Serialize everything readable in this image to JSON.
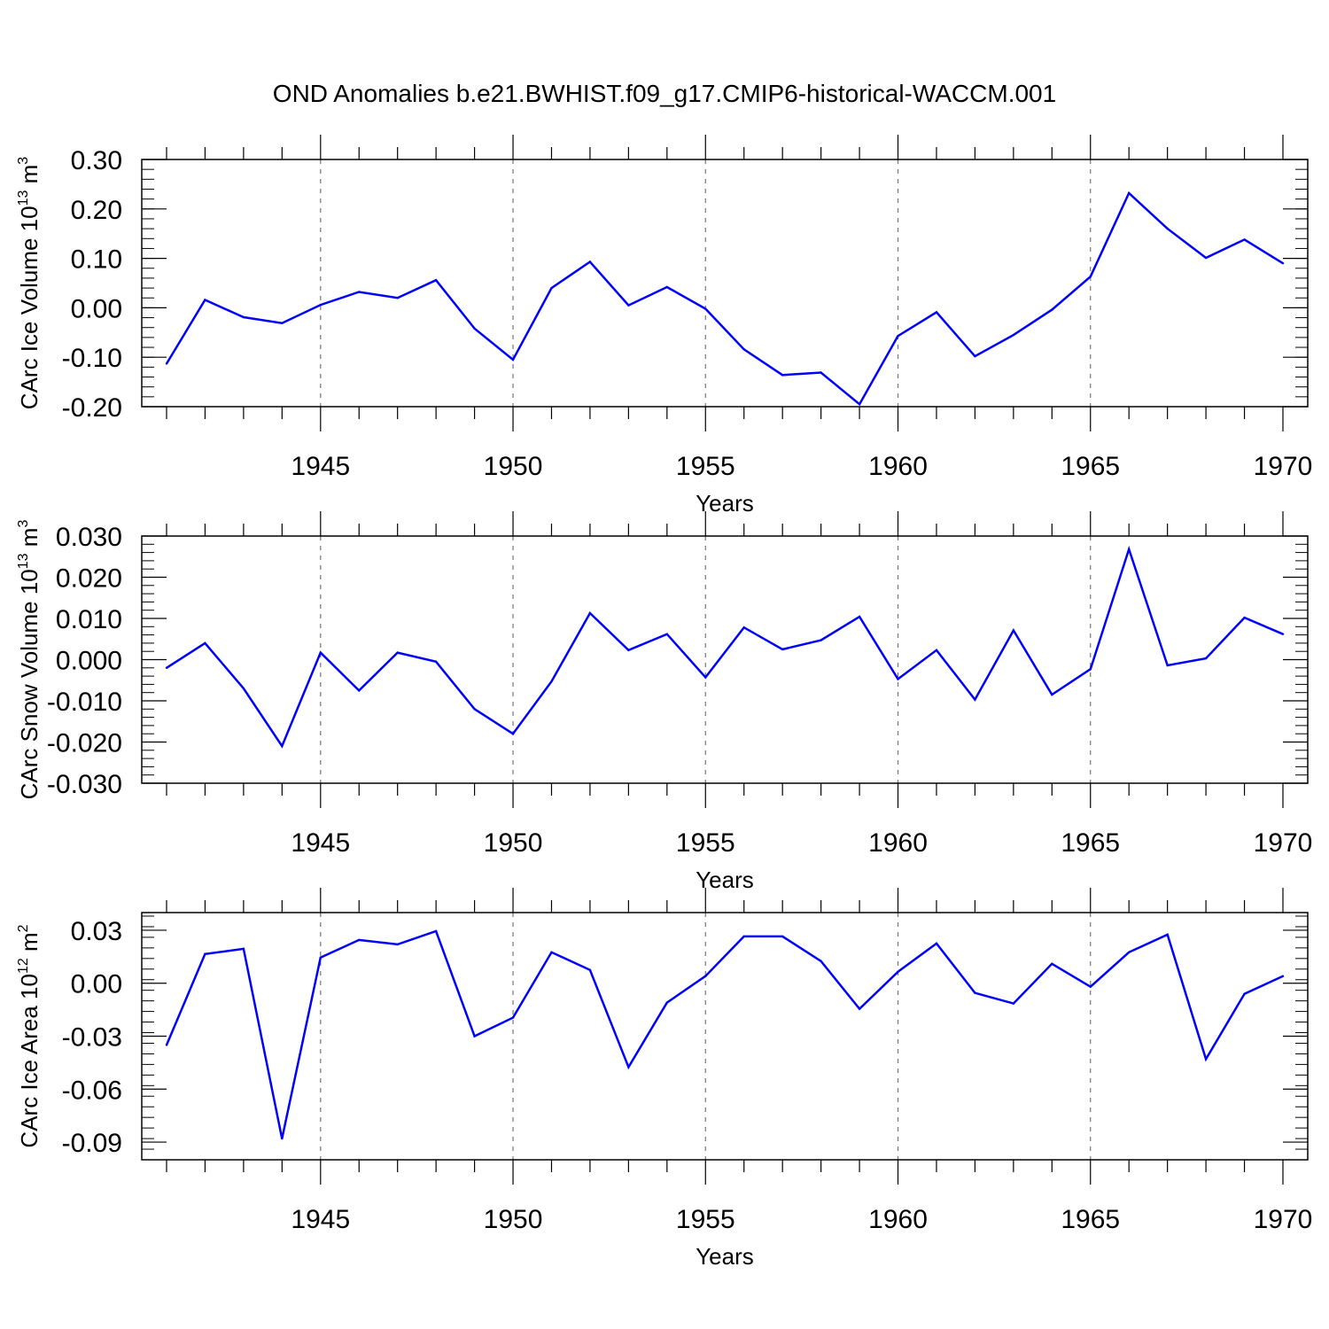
{
  "figure_title": "OND Anomalies b.e21.BWHIST.f09_g17.CMIP6-historical-WACCM.001",
  "line_color": "#0000ff",
  "chart_data": [
    {
      "type": "line",
      "ylabel": "CArc Ice Volume 10",
      "ylabel_exp": "13",
      "ylabel_unit": " m",
      "ylabel_unit_exp": "3",
      "xlabel": "Years",
      "xlim": [
        1941,
        1970
      ],
      "ylim": [
        -0.2,
        0.3
      ],
      "yticks": [
        -0.2,
        -0.1,
        0.0,
        0.1,
        0.2,
        0.3
      ],
      "ytick_labels": [
        "-0.20",
        "-0.10",
        "0.00",
        "0.10",
        "0.20",
        "0.30"
      ],
      "xticks": [
        1945,
        1950,
        1955,
        1960,
        1965,
        1970
      ],
      "xtick_labels": [
        "1945",
        "1950",
        "1955",
        "1960",
        "1965",
        "1970"
      ],
      "grid": "vertical dashed at major x ticks",
      "x": [
        1941,
        1942,
        1943,
        1944,
        1945,
        1946,
        1947,
        1948,
        1949,
        1950,
        1951,
        1952,
        1953,
        1954,
        1955,
        1956,
        1957,
        1958,
        1959,
        1960,
        1961,
        1962,
        1963,
        1964,
        1965,
        1966,
        1967,
        1968,
        1969,
        1970
      ],
      "y": [
        -0.113,
        0.016,
        -0.019,
        -0.031,
        0.006,
        0.032,
        0.02,
        0.056,
        -0.042,
        -0.105,
        0.04,
        0.093,
        0.005,
        0.042,
        -0.002,
        -0.084,
        -0.136,
        -0.131,
        -0.195,
        -0.057,
        -0.009,
        -0.098,
        -0.055,
        -0.004,
        0.063,
        0.232,
        0.16,
        0.101,
        0.138,
        0.09
      ]
    },
    {
      "type": "line",
      "ylabel": "CArc Snow Volume 10",
      "ylabel_exp": "13",
      "ylabel_unit": " m",
      "ylabel_unit_exp": "3",
      "xlabel": "Years",
      "xlim": [
        1941,
        1970
      ],
      "ylim": [
        -0.03,
        0.03
      ],
      "yticks": [
        -0.03,
        -0.02,
        -0.01,
        0.0,
        0.01,
        0.02,
        0.03
      ],
      "ytick_labels": [
        "-0.030",
        "-0.020",
        "-0.010",
        "0.000",
        "0.010",
        "0.020",
        "0.030"
      ],
      "xticks": [
        1945,
        1950,
        1955,
        1960,
        1965,
        1970
      ],
      "xtick_labels": [
        "1945",
        "1950",
        "1955",
        "1960",
        "1965",
        "1970"
      ],
      "grid": "vertical dashed at major x ticks",
      "x": [
        1941,
        1942,
        1943,
        1944,
        1945,
        1946,
        1947,
        1948,
        1949,
        1950,
        1951,
        1952,
        1953,
        1954,
        1955,
        1956,
        1957,
        1958,
        1959,
        1960,
        1961,
        1962,
        1963,
        1964,
        1965,
        1966,
        1967,
        1968,
        1969,
        1970
      ],
      "y": [
        -0.002,
        0.004,
        -0.007,
        -0.021,
        0.0017,
        -0.0075,
        0.0017,
        -0.0005,
        -0.012,
        -0.018,
        -0.0053,
        0.0113,
        0.0023,
        0.0062,
        -0.0043,
        0.0078,
        0.0025,
        0.0047,
        0.0104,
        -0.0047,
        0.0023,
        -0.0097,
        0.0071,
        -0.0085,
        -0.0023,
        0.0268,
        -0.0014,
        0.0003,
        0.0102,
        0.0062
      ]
    },
    {
      "type": "line",
      "ylabel": "CArc Ice Area 10",
      "ylabel_exp": "12",
      "ylabel_unit": " m",
      "ylabel_unit_exp": "2",
      "xlabel": "Years",
      "xlim": [
        1941,
        1970
      ],
      "ylim": [
        -0.1,
        0.04
      ],
      "yticks": [
        -0.09,
        -0.06,
        -0.03,
        0.0,
        0.03
      ],
      "ytick_labels": [
        "-0.09",
        "-0.06",
        "-0.03",
        "0.00",
        "0.03"
      ],
      "xticks": [
        1945,
        1950,
        1955,
        1960,
        1965,
        1970
      ],
      "xtick_labels": [
        "1945",
        "1950",
        "1955",
        "1960",
        "1965",
        "1970"
      ],
      "grid": "vertical dashed at major x ticks",
      "x": [
        1941,
        1942,
        1943,
        1944,
        1945,
        1946,
        1947,
        1948,
        1949,
        1950,
        1951,
        1952,
        1953,
        1954,
        1955,
        1956,
        1957,
        1958,
        1959,
        1960,
        1961,
        1962,
        1963,
        1964,
        1965,
        1966,
        1967,
        1968,
        1969,
        1970
      ],
      "y": [
        -0.035,
        0.0165,
        0.0195,
        -0.088,
        0.0145,
        0.0245,
        0.022,
        0.0295,
        -0.03,
        -0.0195,
        0.0175,
        0.0075,
        -0.0475,
        -0.011,
        0.004,
        0.0265,
        0.0265,
        0.0125,
        -0.0145,
        0.0065,
        0.0225,
        -0.0055,
        -0.0115,
        0.011,
        -0.002,
        0.0175,
        0.0275,
        -0.043,
        -0.006,
        0.004
      ]
    }
  ]
}
